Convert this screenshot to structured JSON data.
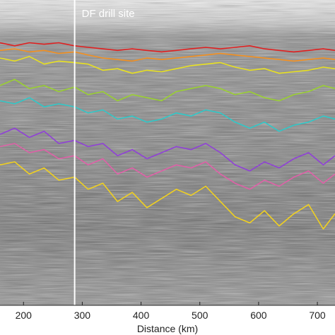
{
  "chart_data": {
    "type": "line",
    "subtype": "radargram-with-traced-layers",
    "xlabel": "Distance (km)",
    "x_ticks": [
      200,
      300,
      400,
      500,
      600,
      "700"
    ],
    "x_tick_labels": [
      "200",
      "300",
      "400",
      "500",
      "600",
      "700"
    ],
    "xlim": [
      160,
      730
    ],
    "ylim": [
      0,
      1
    ],
    "y_axis_labelled": false,
    "background": "grayscale radar echogram",
    "annotation": {
      "text": "DF drill site",
      "x": 287,
      "color": "#ffffff"
    },
    "x": [
      160,
      185,
      210,
      235,
      260,
      287,
      310,
      335,
      360,
      385,
      410,
      435,
      460,
      485,
      510,
      535,
      560,
      585,
      610,
      635,
      660,
      685,
      710,
      730
    ],
    "series": [
      {
        "color": "#e02020",
        "values": [
          0.86,
          0.85,
          0.86,
          0.855,
          0.86,
          0.85,
          0.845,
          0.84,
          0.835,
          0.84,
          0.835,
          0.83,
          0.835,
          0.84,
          0.845,
          0.84,
          0.845,
          0.85,
          0.84,
          0.835,
          0.83,
          0.835,
          0.84,
          0.835
        ]
      },
      {
        "color": "#f39020",
        "values": [
          0.835,
          0.84,
          0.83,
          0.835,
          0.825,
          0.83,
          0.82,
          0.81,
          0.805,
          0.8,
          0.81,
          0.805,
          0.81,
          0.815,
          0.82,
          0.825,
          0.82,
          0.815,
          0.81,
          0.805,
          0.8,
          0.805,
          0.81,
          0.805
        ]
      },
      {
        "color": "#e8e020",
        "values": [
          0.81,
          0.8,
          0.815,
          0.79,
          0.8,
          0.795,
          0.79,
          0.77,
          0.775,
          0.76,
          0.77,
          0.765,
          0.775,
          0.785,
          0.79,
          0.795,
          0.78,
          0.77,
          0.775,
          0.76,
          0.765,
          0.77,
          0.78,
          0.775
        ]
      },
      {
        "color": "#9ad030",
        "values": [
          0.72,
          0.74,
          0.71,
          0.72,
          0.7,
          0.715,
          0.69,
          0.7,
          0.67,
          0.69,
          0.68,
          0.67,
          0.7,
          0.71,
          0.72,
          0.71,
          0.69,
          0.7,
          0.68,
          0.67,
          0.69,
          0.7,
          0.72,
          0.71
        ]
      },
      {
        "color": "#30c8c8",
        "values": [
          0.67,
          0.66,
          0.68,
          0.65,
          0.66,
          0.65,
          0.63,
          0.64,
          0.61,
          0.62,
          0.6,
          0.61,
          0.63,
          0.62,
          0.64,
          0.63,
          0.6,
          0.58,
          0.6,
          0.57,
          0.59,
          0.6,
          0.62,
          0.61
        ]
      },
      {
        "color": "#9040d8",
        "values": [
          0.56,
          0.58,
          0.55,
          0.57,
          0.53,
          0.54,
          0.52,
          0.53,
          0.49,
          0.51,
          0.48,
          0.5,
          0.52,
          0.51,
          0.53,
          0.5,
          0.46,
          0.44,
          0.47,
          0.45,
          0.48,
          0.5,
          0.46,
          0.49
        ]
      },
      {
        "color": "#e060a8",
        "values": [
          0.52,
          0.53,
          0.5,
          0.51,
          0.48,
          0.49,
          0.46,
          0.48,
          0.43,
          0.45,
          0.42,
          0.44,
          0.46,
          0.45,
          0.47,
          0.43,
          0.4,
          0.38,
          0.41,
          0.39,
          0.42,
          0.44,
          0.4,
          0.43
        ]
      },
      {
        "color": "#f0d020",
        "values": [
          0.46,
          0.47,
          0.43,
          0.45,
          0.41,
          0.42,
          0.38,
          0.4,
          0.34,
          0.37,
          0.32,
          0.35,
          0.38,
          0.36,
          0.39,
          0.34,
          0.29,
          0.27,
          0.31,
          0.26,
          0.3,
          0.33,
          0.25,
          0.3
        ]
      }
    ]
  }
}
